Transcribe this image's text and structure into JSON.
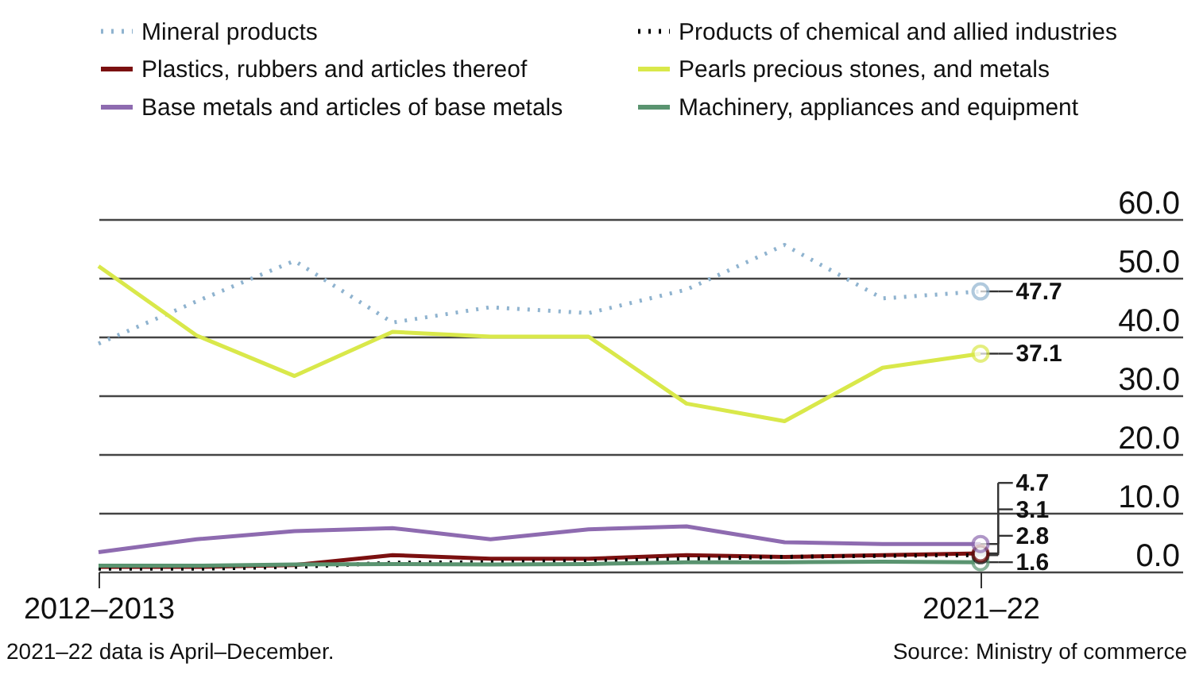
{
  "chart_data": {
    "type": "line",
    "categories": [
      "2012–2013",
      null,
      null,
      null,
      null,
      null,
      null,
      null,
      null,
      "2021–22"
    ],
    "series": [
      {
        "name": "Mineral products",
        "color": "#8fb3cf",
        "line_style": "dotted",
        "values": [
          38.8,
          46.0,
          52.9,
          42.4,
          45.0,
          44.0,
          48.0,
          55.6,
          46.5,
          47.7
        ],
        "value_labels": [
          null,
          null,
          null,
          null,
          null,
          null,
          null,
          null,
          null,
          "47.7"
        ]
      },
      {
        "name": "Plastics, rubbers and articles thereof",
        "color": "#7b1010",
        "line_style": "solid",
        "values": [
          0.8,
          0.8,
          1.1,
          2.8,
          2.2,
          2.2,
          2.8,
          2.5,
          2.8,
          3.1
        ],
        "value_labels": [
          null,
          null,
          null,
          null,
          null,
          null,
          null,
          null,
          null,
          "3.1"
        ]
      },
      {
        "name": "Base metals and articles of base metals",
        "color": "#8e6bb0",
        "line_style": "solid",
        "values": [
          3.3,
          5.5,
          6.9,
          7.4,
          5.5,
          7.2,
          7.7,
          5.0,
          4.7,
          4.7
        ],
        "value_labels": [
          null,
          null,
          null,
          null,
          null,
          null,
          null,
          null,
          null,
          "4.7"
        ]
      },
      {
        "name": "Products of chemical and allied industries",
        "color": "#000000",
        "line_style": "dotted",
        "values": [
          0.5,
          0.5,
          0.8,
          1.5,
          1.6,
          1.8,
          2.2,
          2.5,
          2.7,
          2.8
        ],
        "value_labels": [
          null,
          null,
          null,
          null,
          null,
          null,
          null,
          null,
          null,
          "2.8"
        ]
      },
      {
        "name": "Pearls precious stones, and metals",
        "color": "#d9e84a",
        "line_style": "solid",
        "values": [
          52.0,
          40.2,
          33.3,
          40.8,
          40.0,
          40.0,
          28.6,
          25.6,
          34.7,
          37.1
        ],
        "value_labels": [
          null,
          null,
          null,
          null,
          null,
          null,
          null,
          null,
          null,
          "37.1"
        ]
      },
      {
        "name": "Machinery, appliances and equipment",
        "color": "#5a9470",
        "line_style": "solid",
        "values": [
          1.0,
          1.0,
          1.2,
          1.3,
          1.2,
          1.3,
          1.6,
          1.6,
          1.7,
          1.6
        ],
        "value_labels": [
          null,
          null,
          null,
          null,
          null,
          null,
          null,
          null,
          null,
          "1.6"
        ]
      }
    ],
    "ylim": [
      0,
      60
    ],
    "yticks": [
      {
        "value": 0,
        "label": "0.0"
      },
      {
        "value": 10,
        "label": "10.0"
      },
      {
        "value": 20,
        "label": "20.0"
      },
      {
        "value": 30,
        "label": "30.0"
      },
      {
        "value": 40,
        "label": "40.0"
      },
      {
        "value": 50,
        "label": "50.0"
      },
      {
        "value": 60,
        "label": "60.0"
      }
    ],
    "grid": "y",
    "legend": "top",
    "marker": "none",
    "annotations": [
      "2021–22 data is April–December.",
      "Source: Ministry of commerce"
    ]
  }
}
